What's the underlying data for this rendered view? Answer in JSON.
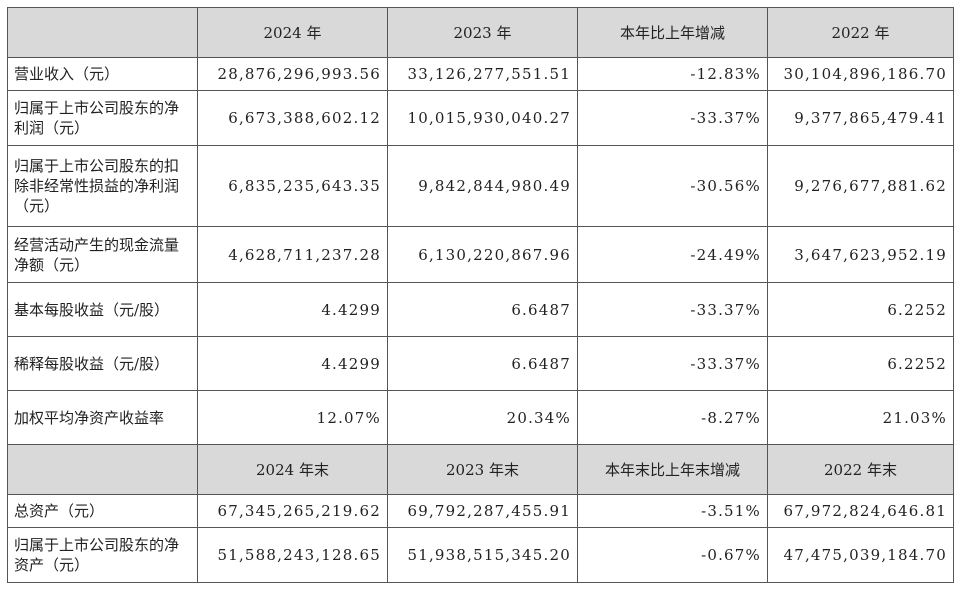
{
  "headers_1": {
    "blank": "",
    "col1": "2024 年",
    "col2": "2023 年",
    "col3": "本年比上年增减",
    "col4": "2022 年"
  },
  "rows_1": [
    {
      "label": "营业收入（元）",
      "v2024": "28,876,296,993.56",
      "v2023": "33,126,277,551.51",
      "change": "-12.83%",
      "v2022": "30,104,896,186.70"
    },
    {
      "label": "归属于上市公司股东的净利润（元）",
      "v2024": "6,673,388,602.12",
      "v2023": "10,015,930,040.27",
      "change": "-33.37%",
      "v2022": "9,377,865,479.41"
    },
    {
      "label": "归属于上市公司股东的扣除非经常性损益的净利润（元）",
      "v2024": "6,835,235,643.35",
      "v2023": "9,842,844,980.49",
      "change": "-30.56%",
      "v2022": "9,276,677,881.62"
    },
    {
      "label": "经营活动产生的现金流量净额（元）",
      "v2024": "4,628,711,237.28",
      "v2023": "6,130,220,867.96",
      "change": "-24.49%",
      "v2022": "3,647,623,952.19"
    },
    {
      "label": "基本每股收益（元/股）",
      "v2024": "4.4299",
      "v2023": "6.6487",
      "change": "-33.37%",
      "v2022": "6.2252"
    },
    {
      "label": "稀释每股收益（元/股）",
      "v2024": "4.4299",
      "v2023": "6.6487",
      "change": "-33.37%",
      "v2022": "6.2252"
    },
    {
      "label": "加权平均净资产收益率",
      "v2024": "12.07%",
      "v2023": "20.34%",
      "change": "-8.27%",
      "v2022": "21.03%"
    }
  ],
  "headers_2": {
    "blank": "",
    "col1": "2024 年末",
    "col2": "2023 年末",
    "col3": "本年末比上年末增减",
    "col4": "2022 年末"
  },
  "rows_2": [
    {
      "label": "总资产（元）",
      "v2024": "67,345,265,219.62",
      "v2023": "69,792,287,455.91",
      "change": "-3.51%",
      "v2022": "67,972,824,646.81"
    },
    {
      "label": "归属于上市公司股东的净资产（元）",
      "v2024": "51,588,243,128.65",
      "v2023": "51,938,515,345.20",
      "change": "-0.67%",
      "v2022": "47,475,039,184.70"
    }
  ]
}
